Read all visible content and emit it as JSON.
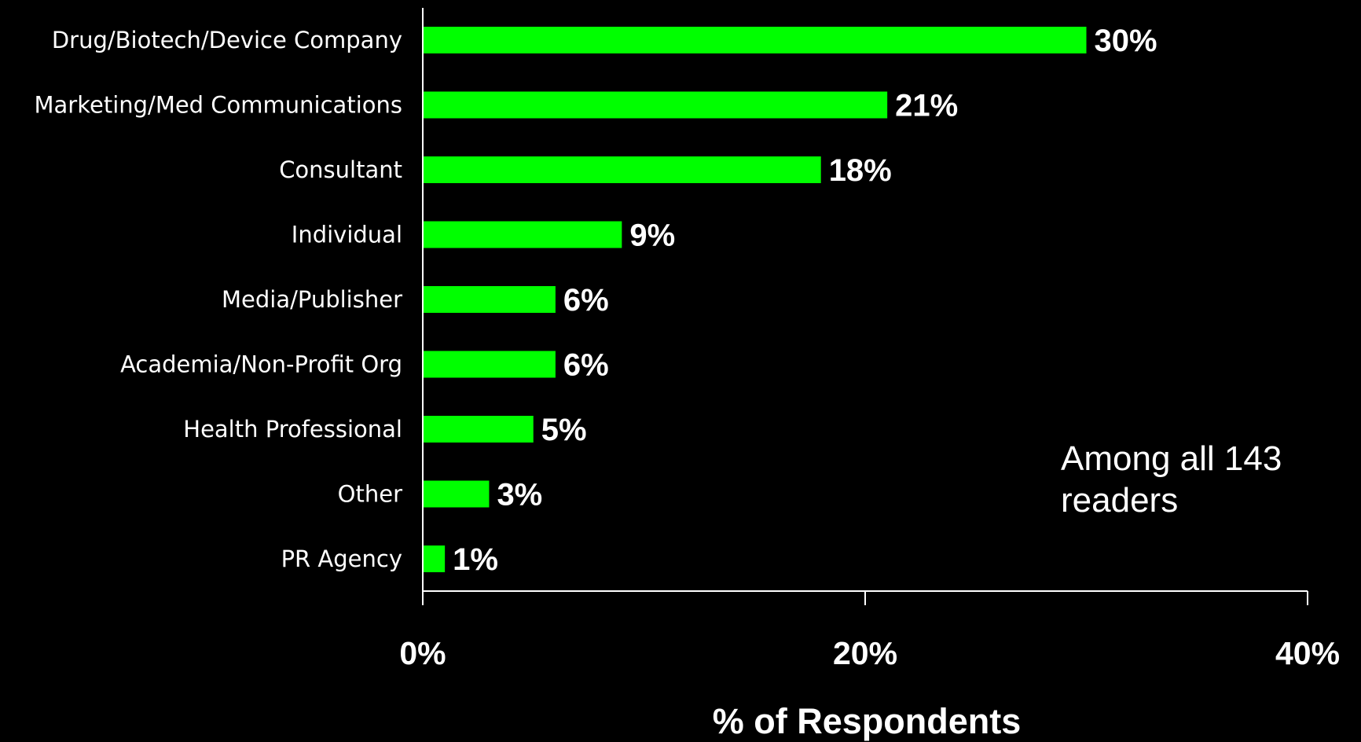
{
  "chart_data": {
    "type": "bar",
    "orientation": "horizontal",
    "categories": [
      "Drug/Biotech/Device Company",
      "Marketing/Med Communications",
      "Consultant",
      "Individual",
      "Media/Publisher",
      "Academia/Non-Profit Org",
      "Health Professional",
      "Other",
      "PR Agency"
    ],
    "values": [
      30,
      21,
      18,
      9,
      6,
      6,
      5,
      3,
      1
    ],
    "value_labels": [
      "30%",
      "21%",
      "18%",
      "9%",
      "6%",
      "6%",
      "5%",
      "3%",
      "1%"
    ],
    "xlim": [
      0,
      40
    ],
    "xticks": [
      0,
      20,
      40
    ],
    "xtick_labels": [
      "0%",
      "20%",
      "40%"
    ],
    "xlabel": "% of Respondents",
    "ylabel": "",
    "title": "",
    "annotation": [
      "Among all 143",
      "readers"
    ],
    "grid": false,
    "legend": "none",
    "colors": {
      "bar": "#00ff00",
      "background": "#000000",
      "text": "#ffffff",
      "axis": "#ffffff"
    }
  }
}
